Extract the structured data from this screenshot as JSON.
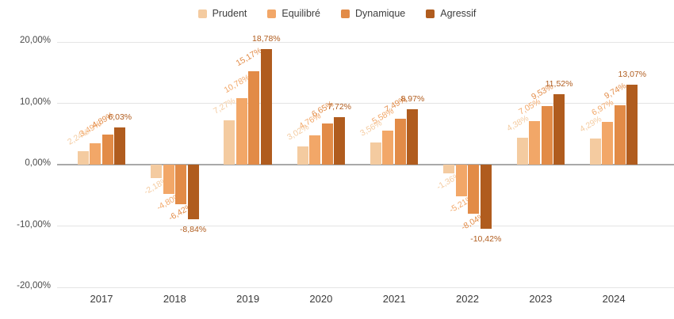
{
  "chart_data": {
    "type": "bar",
    "title": "",
    "categories": [
      "2017",
      "2018",
      "2019",
      "2020",
      "2021",
      "2022",
      "2023",
      "2024"
    ],
    "series": [
      {
        "name": "Prudent",
        "color": "#F4CBA0",
        "values": [
          2.24,
          -2.18,
          7.27,
          3.02,
          3.56,
          -1.36,
          4.38,
          4.29
        ],
        "labels": [
          "2,24%",
          "-2,18%",
          "7,27%",
          "3,02%",
          "3,56%",
          "-1,36%",
          "4,38%",
          "4,29%"
        ]
      },
      {
        "name": "Equilibré",
        "color": "#F2A768",
        "values": [
          3.49,
          -4.8,
          10.78,
          4.76,
          5.58,
          -5.21,
          7.05,
          6.97
        ],
        "labels": [
          "3,49%",
          "-4,80%",
          "10,78%",
          "4,76%",
          "5,58%",
          "-5,21%",
          "7,05%",
          "6,97%"
        ]
      },
      {
        "name": "Dynamique",
        "color": "#E28B47",
        "values": [
          4.89,
          -6.42,
          15.17,
          6.65,
          7.49,
          -8.04,
          9.53,
          9.74
        ],
        "labels": [
          "4,89%",
          "-6,42%",
          "15,17%",
          "6,65%",
          "7,49%",
          "-8,04%",
          "9,53%",
          "9,74%"
        ]
      },
      {
        "name": "Agressif",
        "color": "#B05C1E",
        "values": [
          6.03,
          -8.84,
          18.78,
          7.72,
          8.97,
          -10.42,
          11.52,
          13.07
        ],
        "labels": [
          "6,03%",
          "-8,84%",
          "18,78%",
          "7,72%",
          "8,97%",
          "-10,42%",
          "11,52%",
          "13,07%"
        ]
      }
    ],
    "y_axis": {
      "ticks": [
        {
          "label": "20,00%",
          "value": 20
        },
        {
          "label": "10,00%",
          "value": 10
        },
        {
          "label": "0,00%",
          "value": 0
        },
        {
          "label": "-10,00%",
          "value": -10
        },
        {
          "label": "-20,00%",
          "value": -20
        }
      ],
      "min": -20,
      "max": 20
    },
    "grid": true,
    "legend_position": "top"
  },
  "colors": {
    "background": "#ffffff",
    "gridline": "#e4e4e4",
    "zero_line": "#a9a9a9",
    "axis_text": "#4a4a4a",
    "x_axis_text": "#3a3a3a",
    "legend_text": "#3d3d3d"
  }
}
